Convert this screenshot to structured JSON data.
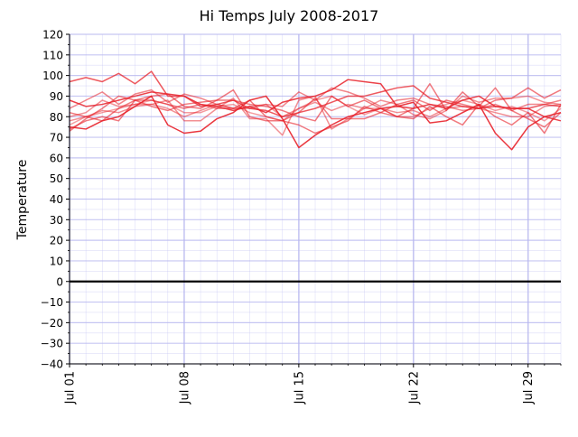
{
  "chart_data": {
    "type": "line",
    "title": "Hi Temps July 2008-2017",
    "xlabel": "",
    "ylabel": "Temperature",
    "ylim": [
      -40,
      120
    ],
    "xlim": [
      1,
      31
    ],
    "yticks": [
      -40,
      -30,
      -20,
      -10,
      0,
      10,
      20,
      30,
      40,
      50,
      60,
      70,
      80,
      90,
      100,
      110,
      120
    ],
    "ytick_labels": [
      "−40",
      "−30",
      "−20",
      "−10",
      "0",
      "10",
      "20",
      "30",
      "40",
      "50",
      "60",
      "70",
      "80",
      "90",
      "100",
      "110",
      "120"
    ],
    "xticks": [
      1,
      8,
      15,
      22,
      29
    ],
    "xtick_labels": [
      "Jul 01",
      "Jul 08",
      "Jul 15",
      "Jul 22",
      "Jul 29"
    ],
    "grid": true,
    "zero_line": true,
    "colors": {
      "series": "#e8212a",
      "grid": "#b8b8f0",
      "zero_line": "#000000"
    },
    "x": [
      1,
      2,
      3,
      4,
      5,
      6,
      7,
      8,
      9,
      10,
      11,
      12,
      13,
      14,
      15,
      16,
      17,
      18,
      19,
      20,
      21,
      22,
      23,
      24,
      25,
      26,
      27,
      28,
      29,
      30,
      31
    ],
    "series": [
      {
        "values": [
          97,
          99,
          97,
          101,
          96,
          102,
          90,
          90,
          85,
          86,
          88,
          84,
          83,
          80,
          82,
          84,
          87,
          90,
          90,
          92,
          94,
          95,
          89,
          87,
          85,
          84,
          85,
          84,
          84,
          86,
          85
        ]
      },
      {
        "values": [
          75,
          74,
          78,
          80,
          85,
          90,
          76,
          72,
          73,
          79,
          82,
          88,
          90,
          79,
          65,
          71,
          76,
          80,
          82,
          84,
          85,
          87,
          77,
          78,
          82,
          86,
          72,
          64,
          75,
          80,
          82
        ]
      },
      {
        "values": [
          73,
          79,
          84,
          90,
          88,
          90,
          91,
          85,
          84,
          88,
          88,
          86,
          85,
          83,
          80,
          78,
          90,
          85,
          88,
          84,
          80,
          84,
          96,
          83,
          92,
          85,
          94,
          83,
          79,
          75,
          82
        ]
      },
      {
        "values": [
          88,
          85,
          86,
          88,
          90,
          92,
          91,
          90,
          86,
          85,
          83,
          85,
          82,
          87,
          89,
          90,
          93,
          98,
          97,
          96,
          85,
          84,
          86,
          84,
          88,
          90,
          85,
          84,
          84,
          80,
          78
        ]
      },
      {
        "values": [
          80,
          82,
          88,
          85,
          86,
          86,
          84,
          80,
          83,
          86,
          84,
          85,
          86,
          80,
          84,
          87,
          83,
          86,
          84,
          84,
          82,
          83,
          80,
          84,
          85,
          84,
          82,
          80,
          80,
          85,
          86
        ]
      },
      {
        "values": [
          84,
          88,
          92,
          86,
          91,
          93,
          87,
          91,
          89,
          86,
          84,
          84,
          86,
          85,
          92,
          88,
          94,
          92,
          89,
          85,
          88,
          89,
          86,
          85,
          83,
          84,
          86,
          83,
          86,
          86,
          88
        ]
      },
      {
        "values": [
          76,
          80,
          82,
          84,
          86,
          88,
          86,
          82,
          82,
          85,
          86,
          82,
          80,
          78,
          84,
          88,
          90,
          85,
          81,
          84,
          80,
          80,
          84,
          86,
          88,
          86,
          83,
          85,
          82,
          78,
          84
        ]
      },
      {
        "values": [
          78,
          80,
          83,
          82,
          85,
          86,
          88,
          78,
          78,
          84,
          89,
          79,
          79,
          71,
          88,
          90,
          74,
          79,
          84,
          88,
          86,
          81,
          79,
          83,
          90,
          87,
          89,
          89,
          90,
          87,
          86
        ]
      },
      {
        "values": [
          74,
          78,
          80,
          78,
          88,
          88,
          86,
          84,
          86,
          84,
          84,
          88,
          80,
          78,
          76,
          72,
          75,
          78,
          85,
          82,
          80,
          79,
          85,
          80,
          76,
          86,
          80,
          76,
          82,
          72,
          86
        ]
      },
      {
        "values": [
          82,
          80,
          78,
          84,
          88,
          85,
          83,
          86,
          87,
          88,
          93,
          80,
          78,
          78,
          82,
          89,
          79,
          79,
          79,
          82,
          86,
          88,
          83,
          88,
          86,
          84,
          88,
          89,
          94,
          89,
          93
        ]
      }
    ],
    "series_opacity": [
      0.75,
      0.9,
      0.6,
      0.85,
      0.5,
      0.55,
      0.45,
      0.5,
      0.6,
      0.6
    ]
  }
}
